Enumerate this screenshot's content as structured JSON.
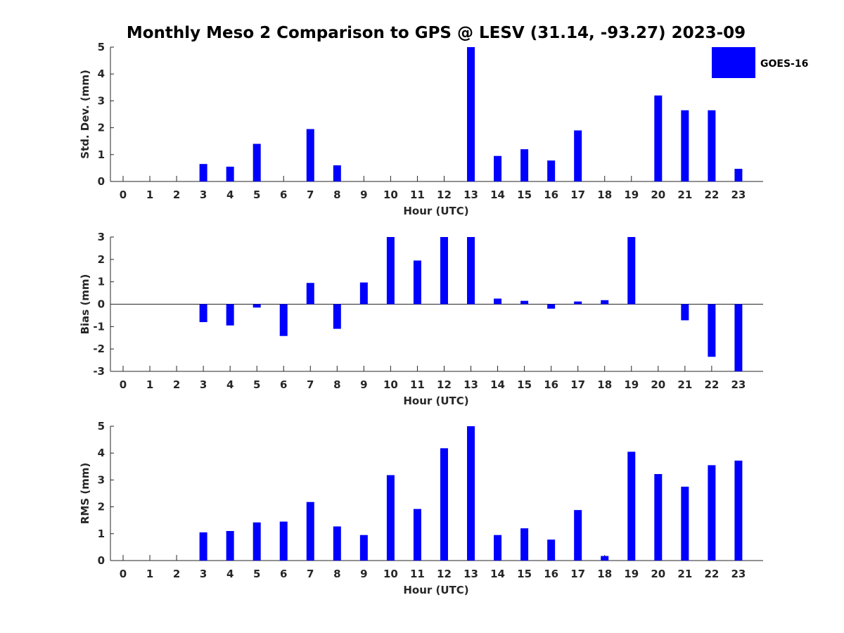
{
  "title": "Monthly Meso 2 Comparison to GPS @ LESV (31.14, -93.27) 2023-09",
  "legend": {
    "label": "GOES-16",
    "color": "#0000ff"
  },
  "chart_data": [
    {
      "type": "bar",
      "xlabel": "Hour (UTC)",
      "ylabel": "Std. Dev. (mm)",
      "ylim": [
        0,
        5
      ],
      "yticks": [
        "0",
        "1",
        "2",
        "3",
        "4",
        "5"
      ],
      "categories": [
        "0",
        "1",
        "2",
        "3",
        "4",
        "5",
        "6",
        "7",
        "8",
        "9",
        "10",
        "11",
        "12",
        "13",
        "14",
        "15",
        "16",
        "17",
        "18",
        "19",
        "20",
        "21",
        "22",
        "23"
      ],
      "series": [
        {
          "name": "GOES-16",
          "values": [
            0,
            0,
            0,
            0.65,
            0.55,
            1.4,
            0,
            1.95,
            0.6,
            0,
            0,
            0,
            0,
            5.0,
            0.95,
            1.2,
            0.78,
            1.9,
            0,
            0,
            3.2,
            2.65,
            2.65,
            0.47
          ]
        }
      ],
      "legend": "top-right",
      "grid": false
    },
    {
      "type": "bar",
      "xlabel": "Hour (UTC)",
      "ylabel": "Bias (mm)",
      "ylim": [
        -3,
        3
      ],
      "yticks": [
        "-3",
        "-2",
        "-1",
        "0",
        "1",
        "2",
        "3"
      ],
      "categories": [
        "0",
        "1",
        "2",
        "3",
        "4",
        "5",
        "6",
        "7",
        "8",
        "9",
        "10",
        "11",
        "12",
        "13",
        "14",
        "15",
        "16",
        "17",
        "18",
        "19",
        "20",
        "21",
        "22",
        "23"
      ],
      "series": [
        {
          "name": "GOES-16",
          "values": [
            0,
            0,
            0,
            -0.8,
            -0.95,
            -0.15,
            -1.42,
            0.95,
            -1.1,
            0.97,
            3.0,
            1.95,
            3.0,
            3.0,
            0.25,
            0.15,
            -0.2,
            0.12,
            0.18,
            3.0,
            0,
            -0.72,
            -2.35,
            -3.0
          ]
        }
      ],
      "grid": false
    },
    {
      "type": "bar",
      "xlabel": "Hour (UTC)",
      "ylabel": "RMS (mm)",
      "ylim": [
        0,
        5
      ],
      "yticks": [
        "0",
        "1",
        "2",
        "3",
        "4",
        "5"
      ],
      "categories": [
        "0",
        "1",
        "2",
        "3",
        "4",
        "5",
        "6",
        "7",
        "8",
        "9",
        "10",
        "11",
        "12",
        "13",
        "14",
        "15",
        "16",
        "17",
        "18",
        "19",
        "20",
        "21",
        "22",
        "23"
      ],
      "series": [
        {
          "name": "GOES-16",
          "values": [
            0,
            0,
            0,
            1.05,
            1.1,
            1.42,
            1.45,
            2.18,
            1.27,
            0.95,
            3.18,
            1.92,
            4.18,
            5.0,
            0.95,
            1.2,
            0.78,
            1.88,
            0.17,
            4.05,
            3.22,
            2.75,
            3.55,
            3.72
          ]
        }
      ],
      "grid": false
    }
  ]
}
